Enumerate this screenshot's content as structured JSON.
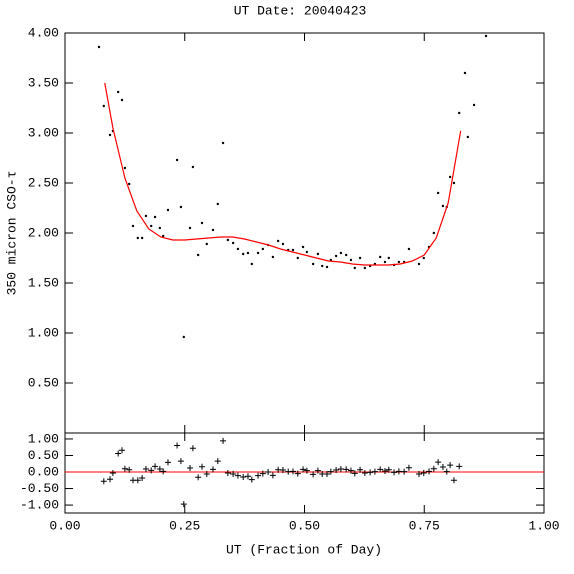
{
  "chart_data": [
    {
      "type": "scatter",
      "title": "UT Date: 20040423",
      "ylabel": "350 micron CSO-τ",
      "xlim": [
        0,
        1
      ],
      "ylim": [
        0,
        4
      ],
      "yticks": [
        {
          "value": 0.5,
          "label": "0.50"
        },
        {
          "value": 1,
          "label": "1.00"
        },
        {
          "value": 1.5,
          "label": "1.50"
        },
        {
          "value": 2,
          "label": "2.00"
        },
        {
          "value": 2.5,
          "label": "2.50"
        },
        {
          "value": 3,
          "label": "3.00"
        },
        {
          "value": 3.5,
          "label": "3.50"
        },
        {
          "value": 4,
          "label": "4.00"
        }
      ],
      "series": [
        {
          "style": "dot",
          "color": "#000000",
          "x": [
            0.071,
            0.081,
            0.094,
            0.1,
            0.111,
            0.119,
            0.125,
            0.134,
            0.142,
            0.152,
            0.161,
            0.169,
            0.18,
            0.188,
            0.198,
            0.205,
            0.215,
            0.234,
            0.242,
            0.248,
            0.261,
            0.267,
            0.278,
            0.286,
            0.296,
            0.309,
            0.319,
            0.33,
            0.34,
            0.351,
            0.361,
            0.372,
            0.382,
            0.39,
            0.403,
            0.413,
            0.424,
            0.434,
            0.445,
            0.455,
            0.466,
            0.476,
            0.486,
            0.497,
            0.505,
            0.518,
            0.528,
            0.537,
            0.547,
            0.555,
            0.566,
            0.576,
            0.587,
            0.597,
            0.605,
            0.616,
            0.626,
            0.637,
            0.647,
            0.658,
            0.668,
            0.676,
            0.687,
            0.697,
            0.708,
            0.718,
            0.739,
            0.749,
            0.76,
            0.77,
            0.779,
            0.789,
            0.797,
            0.804,
            0.812,
            0.823,
            0.835,
            0.841,
            0.854,
            0.879
          ],
          "values": [
            3.86,
            3.27,
            2.98,
            3.02,
            3.41,
            3.33,
            2.65,
            2.49,
            2.07,
            1.95,
            1.95,
            2.17,
            2.07,
            2.16,
            2.05,
            1.97,
            2.23,
            2.73,
            2.26,
            0.96,
            2.05,
            2.66,
            1.78,
            2.1,
            1.89,
            2.03,
            2.29,
            2.9,
            1.93,
            1.9,
            1.84,
            1.79,
            1.8,
            1.69,
            1.8,
            1.84,
            1.88,
            1.76,
            1.92,
            1.89,
            1.83,
            1.83,
            1.75,
            1.86,
            1.81,
            1.69,
            1.79,
            1.67,
            1.66,
            1.73,
            1.77,
            1.8,
            1.78,
            1.73,
            1.65,
            1.75,
            1.65,
            1.67,
            1.69,
            1.76,
            1.71,
            1.75,
            1.68,
            1.71,
            1.71,
            1.84,
            1.69,
            1.75,
            1.86,
            2.0,
            2.4,
            2.27,
            2.26,
            2.56,
            2.5,
            3.2,
            3.6,
            2.96,
            3.28,
            3.97
          ]
        },
        {
          "style": "line",
          "color": "#ff0000",
          "x": [
            0.083,
            0.1,
            0.125,
            0.15,
            0.175,
            0.2,
            0.225,
            0.25,
            0.275,
            0.3,
            0.325,
            0.35,
            0.375,
            0.4,
            0.425,
            0.45,
            0.475,
            0.5,
            0.525,
            0.55,
            0.575,
            0.6,
            0.625,
            0.65,
            0.675,
            0.7,
            0.725,
            0.75,
            0.775,
            0.8,
            0.826
          ],
          "values": [
            3.5,
            3.05,
            2.55,
            2.22,
            2.04,
            1.96,
            1.93,
            1.93,
            1.94,
            1.95,
            1.96,
            1.96,
            1.94,
            1.91,
            1.88,
            1.84,
            1.81,
            1.78,
            1.75,
            1.72,
            1.71,
            1.69,
            1.68,
            1.68,
            1.68,
            1.69,
            1.72,
            1.78,
            1.95,
            2.3,
            3.02
          ]
        }
      ]
    },
    {
      "type": "scatter",
      "xlabel": "UT (Fraction of Day)",
      "xlim": [
        0,
        1
      ],
      "ylim": [
        -1.24,
        1.18
      ],
      "xticks": [
        {
          "value": 0,
          "label": "0.00"
        },
        {
          "value": 0.25,
          "label": "0.25"
        },
        {
          "value": 0.5,
          "label": "0.50"
        },
        {
          "value": 0.75,
          "label": "0.75"
        },
        {
          "value": 1,
          "label": "1.00"
        }
      ],
      "yticks": [
        {
          "value": -1,
          "label": "-1.00"
        },
        {
          "value": -0.5,
          "label": "-0.50"
        },
        {
          "value": 0,
          "label": "0.00"
        },
        {
          "value": 0.5,
          "label": "0.50"
        },
        {
          "value": 1,
          "label": "1.00"
        }
      ],
      "refline": {
        "value": 0,
        "color": "#ff0000"
      },
      "series": [
        {
          "style": "plus",
          "color": "#000000",
          "x": [
            0.081,
            0.094,
            0.1,
            0.111,
            0.119,
            0.125,
            0.134,
            0.142,
            0.152,
            0.161,
            0.169,
            0.18,
            0.188,
            0.198,
            0.205,
            0.215,
            0.234,
            0.242,
            0.248,
            0.261,
            0.267,
            0.278,
            0.286,
            0.296,
            0.309,
            0.319,
            0.33,
            0.34,
            0.351,
            0.361,
            0.372,
            0.382,
            0.39,
            0.403,
            0.413,
            0.424,
            0.434,
            0.445,
            0.455,
            0.466,
            0.476,
            0.486,
            0.497,
            0.505,
            0.518,
            0.528,
            0.537,
            0.547,
            0.555,
            0.566,
            0.576,
            0.587,
            0.597,
            0.605,
            0.616,
            0.626,
            0.637,
            0.647,
            0.658,
            0.668,
            0.676,
            0.687,
            0.697,
            0.708,
            0.718,
            0.739,
            0.749,
            0.76,
            0.77,
            0.779,
            0.789,
            0.797,
            0.804,
            0.812,
            0.823
          ],
          "values": [
            -0.28,
            -0.22,
            -0.03,
            0.56,
            0.66,
            0.1,
            0.07,
            -0.25,
            -0.25,
            -0.18,
            0.09,
            0.05,
            0.17,
            0.09,
            0.02,
            0.29,
            0.8,
            0.33,
            -0.97,
            0.12,
            0.72,
            -0.16,
            0.16,
            -0.06,
            0.08,
            0.33,
            0.94,
            -0.03,
            -0.06,
            -0.11,
            -0.15,
            -0.13,
            -0.23,
            -0.11,
            -0.05,
            0.0,
            -0.1,
            0.07,
            0.06,
            0.01,
            0.02,
            -0.05,
            0.08,
            0.04,
            -0.07,
            0.04,
            -0.06,
            -0.06,
            0.01,
            0.06,
            0.09,
            0.08,
            0.04,
            -0.04,
            0.07,
            -0.03,
            -0.01,
            0.01,
            0.08,
            0.03,
            0.07,
            -0.01,
            0.02,
            0.01,
            0.13,
            -0.06,
            -0.03,
            0.02,
            0.1,
            0.3,
            0.15,
            0.01,
            0.21,
            -0.25,
            0.17
          ]
        }
      ]
    }
  ]
}
